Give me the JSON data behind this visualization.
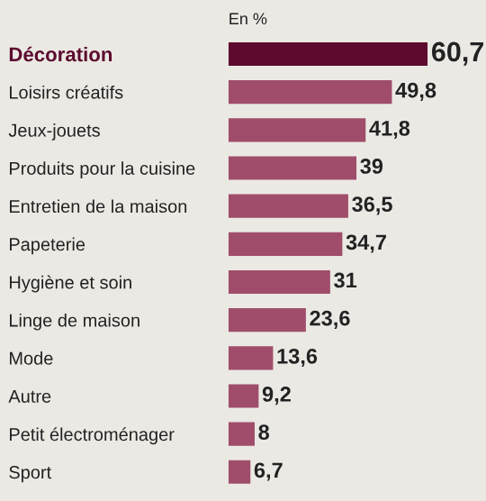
{
  "chart_data": {
    "type": "bar",
    "orientation": "horizontal",
    "xlabel": "En %",
    "categories": [
      "Décoration",
      "Loisirs créatifs",
      "Jeux-jouets",
      "Produits pour la cuisine",
      "Entretien de la maison",
      "Papeterie",
      "Hygiène et soin",
      "Linge de maison",
      "Mode",
      "Autre",
      "Petit électroménager",
      "Sport"
    ],
    "values": [
      60.7,
      49.8,
      41.8,
      39,
      36.5,
      34.7,
      31,
      23.6,
      13.6,
      9.2,
      8,
      6.7
    ],
    "colors": [
      "#5c0a2e",
      "#a04d6b",
      "#a04d6b",
      "#a04d6b",
      "#a04d6b",
      "#a04d6b",
      "#a04d6b",
      "#a04d6b",
      "#a04d6b",
      "#a04d6b",
      "#a04d6b",
      "#a04d6b"
    ],
    "value_labels": [
      "60,7",
      "49,8",
      "41,8",
      "39",
      "36,5",
      "34,7",
      "31",
      "23,6",
      "13,6",
      "9,2",
      "8",
      "6,7"
    ],
    "tick_labels": "y",
    "grid": false,
    "legend": false
  }
}
